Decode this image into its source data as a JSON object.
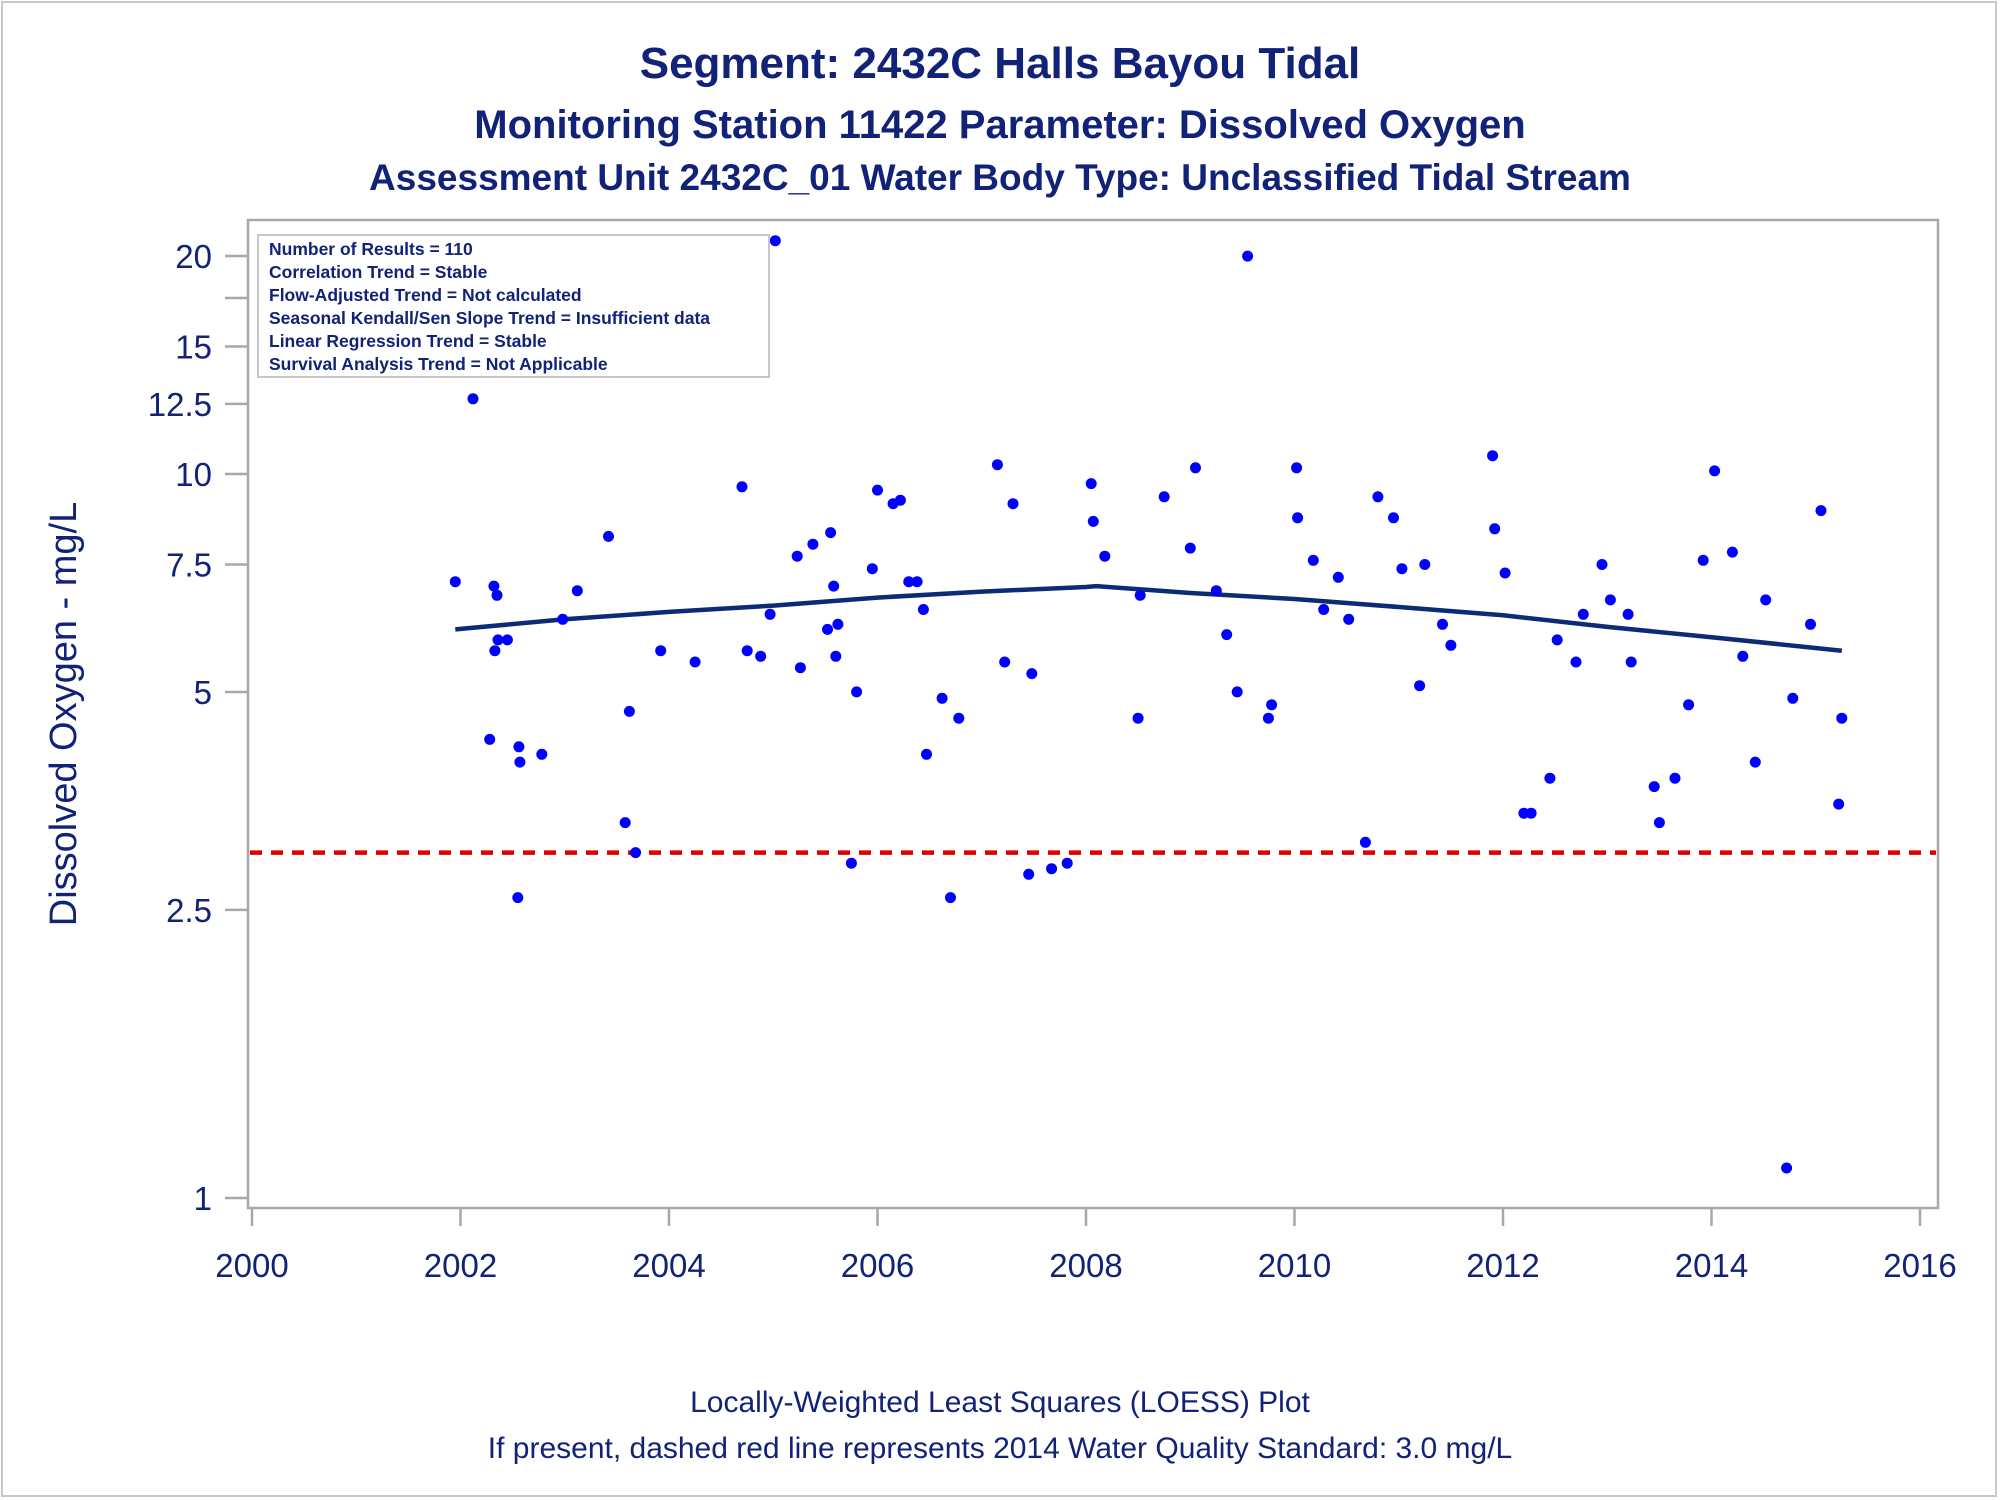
{
  "colors": {
    "text": "#112277",
    "points": "#0000ff",
    "loess_line": "#0b2b75",
    "standard_line": "#dd0000",
    "frame": "#a8a8a8"
  },
  "titles": {
    "line1": "Segment: 2432C  Halls Bayou Tidal",
    "line2": "Monitoring Station 11422 Parameter: Dissolved Oxygen",
    "line3": "Assessment Unit 2432C_01   Water Body Type: Unclassified Tidal Stream"
  },
  "inset": {
    "lines": [
      "Number of Results = 110",
      "Correlation Trend = Stable",
      "Flow-Adjusted Trend = Not calculated",
      "Seasonal Kendall/Sen Slope Trend = Insufficient data",
      "Linear Regression Trend = Stable",
      "Survival Analysis Trend = Not Applicable"
    ]
  },
  "footnotes": {
    "line1": "Locally-Weighted Least Squares (LOESS) Plot",
    "line2": "If present, dashed red line represents 2014 Water Quality Standard: 3.0 mg/L"
  },
  "chart_data": {
    "type": "scatter",
    "title": "Segment: 2432C  Halls Bayou Tidal",
    "xlabel": "",
    "ylabel": "Dissolved Oxygen - mg/L",
    "xlim": [
      2000,
      2016
    ],
    "ylim": [
      0.95,
      21.5
    ],
    "y_scale": "log",
    "grid": false,
    "x_ticks": [
      2000,
      2002,
      2004,
      2006,
      2008,
      2010,
      2012,
      2014,
      2016
    ],
    "x_tick_labels": [
      "2000",
      "2002",
      "2004",
      "2006",
      "2008",
      "2010",
      "2012",
      "2014",
      "2016"
    ],
    "y_ticks": [
      1,
      2.5,
      5,
      7.5,
      10,
      12.5,
      15,
      20
    ],
    "y_tick_labels": [
      "1",
      "2.5",
      "5",
      "7.5",
      "10",
      "12.5",
      "15",
      "20"
    ],
    "y_minor_ticks": [
      17.5
    ],
    "standard_line": {
      "value": 3.0,
      "style": "dashed"
    },
    "points": [
      [
        2001.95,
        7.1
      ],
      [
        2002.12,
        12.7
      ],
      [
        2002.28,
        4.3
      ],
      [
        2002.32,
        7.0
      ],
      [
        2002.33,
        5.7
      ],
      [
        2002.35,
        6.8
      ],
      [
        2002.36,
        5.9
      ],
      [
        2002.45,
        5.9
      ],
      [
        2002.55,
        2.6
      ],
      [
        2002.56,
        4.2
      ],
      [
        2002.57,
        4.0
      ],
      [
        2002.78,
        4.1
      ],
      [
        2002.98,
        6.3
      ],
      [
        2003.12,
        6.9
      ],
      [
        2003.42,
        8.2
      ],
      [
        2003.58,
        3.3
      ],
      [
        2003.62,
        4.7
      ],
      [
        2003.68,
        3.0
      ],
      [
        2003.92,
        5.7
      ],
      [
        2004.25,
        5.5
      ],
      [
        2004.7,
        9.6
      ],
      [
        2004.75,
        5.7
      ],
      [
        2004.88,
        5.6
      ],
      [
        2004.97,
        6.4
      ],
      [
        2005.02,
        21.0
      ],
      [
        2005.23,
        7.7
      ],
      [
        2005.26,
        5.4
      ],
      [
        2005.38,
        8.0
      ],
      [
        2005.52,
        6.1
      ],
      [
        2005.55,
        8.3
      ],
      [
        2005.58,
        7.0
      ],
      [
        2005.6,
        5.6
      ],
      [
        2005.62,
        6.2
      ],
      [
        2005.75,
        2.9
      ],
      [
        2005.8,
        5.0
      ],
      [
        2005.95,
        7.4
      ],
      [
        2006.0,
        9.5
      ],
      [
        2006.15,
        9.1
      ],
      [
        2006.22,
        9.2
      ],
      [
        2006.3,
        7.1
      ],
      [
        2006.38,
        7.1
      ],
      [
        2006.44,
        6.5
      ],
      [
        2006.47,
        4.1
      ],
      [
        2006.62,
        4.9
      ],
      [
        2006.7,
        2.6
      ],
      [
        2006.78,
        4.6
      ],
      [
        2007.15,
        10.3
      ],
      [
        2007.22,
        5.5
      ],
      [
        2007.3,
        9.1
      ],
      [
        2007.45,
        2.8
      ],
      [
        2007.48,
        5.3
      ],
      [
        2007.67,
        2.85
      ],
      [
        2007.82,
        2.9
      ],
      [
        2008.05,
        9.7
      ],
      [
        2008.07,
        8.6
      ],
      [
        2008.18,
        7.7
      ],
      [
        2008.5,
        4.6
      ],
      [
        2008.52,
        6.8
      ],
      [
        2008.75,
        9.3
      ],
      [
        2009.0,
        7.9
      ],
      [
        2009.05,
        10.2
      ],
      [
        2009.25,
        6.9
      ],
      [
        2009.35,
        6.0
      ],
      [
        2009.45,
        5.0
      ],
      [
        2009.55,
        20.0
      ],
      [
        2009.75,
        4.6
      ],
      [
        2009.78,
        4.8
      ],
      [
        2010.02,
        10.2
      ],
      [
        2010.03,
        8.7
      ],
      [
        2010.18,
        7.6
      ],
      [
        2010.28,
        6.5
      ],
      [
        2010.42,
        7.2
      ],
      [
        2010.52,
        6.3
      ],
      [
        2010.68,
        3.1
      ],
      [
        2010.8,
        9.3
      ],
      [
        2010.95,
        8.7
      ],
      [
        2011.03,
        7.4
      ],
      [
        2011.2,
        5.1
      ],
      [
        2011.25,
        7.5
      ],
      [
        2011.42,
        6.2
      ],
      [
        2011.5,
        5.8
      ],
      [
        2011.9,
        10.6
      ],
      [
        2011.92,
        8.4
      ],
      [
        2012.02,
        7.3
      ],
      [
        2012.2,
        3.4
      ],
      [
        2012.27,
        3.4
      ],
      [
        2012.45,
        3.8
      ],
      [
        2012.52,
        5.9
      ],
      [
        2012.7,
        5.5
      ],
      [
        2012.77,
        6.4
      ],
      [
        2012.95,
        7.5
      ],
      [
        2013.03,
        6.7
      ],
      [
        2013.2,
        6.4
      ],
      [
        2013.23,
        5.5
      ],
      [
        2013.45,
        3.7
      ],
      [
        2013.5,
        3.3
      ],
      [
        2013.65,
        3.8
      ],
      [
        2013.78,
        4.8
      ],
      [
        2013.92,
        7.6
      ],
      [
        2014.03,
        10.1
      ],
      [
        2014.2,
        7.8
      ],
      [
        2014.3,
        5.6
      ],
      [
        2014.42,
        4.0
      ],
      [
        2014.52,
        6.7
      ],
      [
        2014.72,
        1.1
      ],
      [
        2014.78,
        4.9
      ],
      [
        2014.95,
        6.2
      ],
      [
        2015.05,
        8.9
      ],
      [
        2015.22,
        3.5
      ],
      [
        2015.25,
        4.6
      ]
    ],
    "loess": [
      [
        2001.95,
        6.1
      ],
      [
        2003.0,
        6.3
      ],
      [
        2004.0,
        6.45
      ],
      [
        2005.0,
        6.58
      ],
      [
        2006.0,
        6.75
      ],
      [
        2007.0,
        6.88
      ],
      [
        2008.0,
        6.98
      ],
      [
        2008.1,
        7.0
      ],
      [
        2009.0,
        6.85
      ],
      [
        2010.0,
        6.72
      ],
      [
        2011.0,
        6.55
      ],
      [
        2012.0,
        6.38
      ],
      [
        2013.0,
        6.15
      ],
      [
        2014.0,
        5.95
      ],
      [
        2015.25,
        5.7
      ]
    ]
  }
}
